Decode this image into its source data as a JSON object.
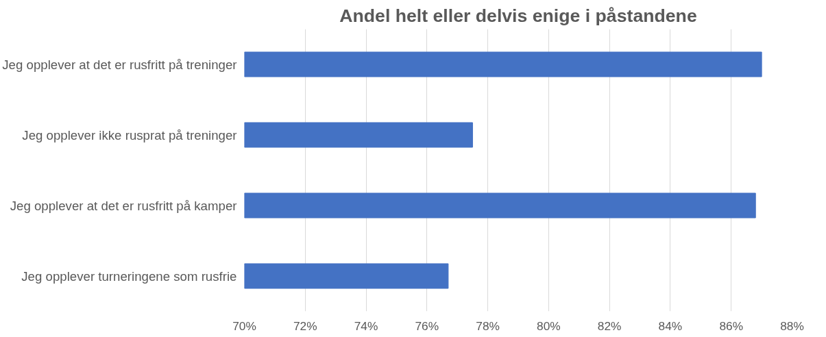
{
  "chart_data": {
    "type": "bar",
    "orientation": "horizontal",
    "title": "Andel helt eller delvis enige i påstandene",
    "categories": [
      "Jeg opplever at det er rusfritt på treninger",
      "Jeg opplever ikke rusprat på treninger",
      "Jeg opplever at det er rusfritt på kamper",
      "Jeg opplever turneringene som rusfrie"
    ],
    "values": [
      87.0,
      77.5,
      86.8,
      76.7
    ],
    "color": "#4472c4",
    "xlim": [
      70,
      88
    ],
    "xticks": [
      {
        "value": 70,
        "label": "70%"
      },
      {
        "value": 72,
        "label": "72%"
      },
      {
        "value": 74,
        "label": "74%"
      },
      {
        "value": 76,
        "label": "76%"
      },
      {
        "value": 78,
        "label": "78%"
      },
      {
        "value": 80,
        "label": "80%"
      },
      {
        "value": 82,
        "label": "82%"
      },
      {
        "value": 84,
        "label": "84%"
      },
      {
        "value": 86,
        "label": "86%"
      },
      {
        "value": 88,
        "label": "88%"
      }
    ],
    "grid": "x"
  }
}
